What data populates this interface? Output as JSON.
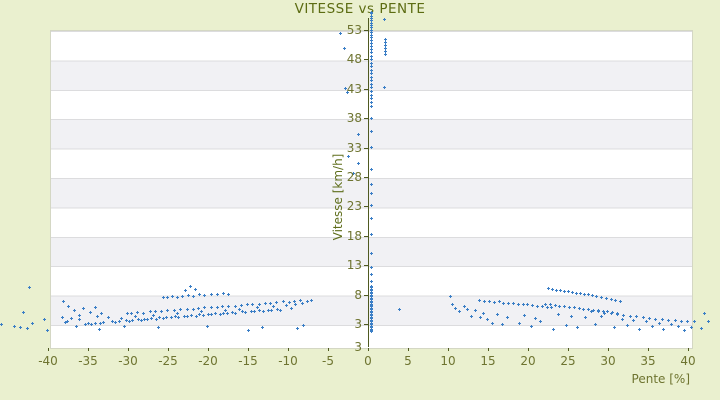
{
  "colors": {
    "background": "#eaf0cf",
    "marker": "#3a7ec6",
    "axis_line": "#4f5a21",
    "title_text": "#5c6c12",
    "tick_text": "#6e7430"
  },
  "chart_data": {
    "type": "scatter",
    "title": "VITESSE vs PENTE",
    "xlabel": "Pente [%]",
    "ylabel": "Vitesse [km/h]",
    "legend": "none",
    "grid": "horizontal-bands",
    "xlim": [
      -40,
      40.4
    ],
    "ylim": [
      -1,
      53
    ],
    "x_ticks": [
      -40,
      -35,
      -30,
      -25,
      -20,
      -15,
      -10,
      -5,
      0,
      5,
      10,
      15,
      20,
      25,
      30,
      35,
      40
    ],
    "y_ticks": [
      53,
      48,
      43,
      38,
      33,
      28,
      23,
      18,
      13,
      8,
      3
    ],
    "y_axis_end_label": "3",
    "points": [
      [
        -46.0,
        3.2
      ],
      [
        -44.4,
        2.9
      ],
      [
        -42.5,
        9.5
      ],
      [
        -43.3,
        5.2
      ],
      [
        -42.1,
        3.3
      ],
      [
        -43.6,
        2.7
      ],
      [
        -42.8,
        2.5
      ],
      [
        -40.6,
        4.0
      ],
      [
        -40.2,
        2.1
      ],
      [
        -38.2,
        7.0
      ],
      [
        -37.6,
        6.3
      ],
      [
        -36.9,
        5.6
      ],
      [
        -36.3,
        4.7
      ],
      [
        -37.2,
        4.2
      ],
      [
        -38.0,
        3.5
      ],
      [
        -35.8,
        5.9
      ],
      [
        -34.9,
        5.2
      ],
      [
        -34.2,
        6.0
      ],
      [
        -33.5,
        5.0
      ],
      [
        -36.6,
        2.9
      ],
      [
        -37.8,
        3.6
      ],
      [
        -38.4,
        4.3
      ],
      [
        -35.5,
        3.2
      ],
      [
        -35.1,
        3.3
      ],
      [
        -34.7,
        3.2
      ],
      [
        -34.3,
        3.4
      ],
      [
        -33.6,
        3.3
      ],
      [
        -33.2,
        3.5
      ],
      [
        -32.1,
        3.6
      ],
      [
        -31.7,
        3.5
      ],
      [
        -31.3,
        3.7
      ],
      [
        -30.4,
        3.8
      ],
      [
        -30.0,
        3.7
      ],
      [
        -29.6,
        3.9
      ],
      [
        -28.9,
        4.0
      ],
      [
        -28.5,
        3.9
      ],
      [
        -28.1,
        4.1
      ],
      [
        -27.7,
        4.0
      ],
      [
        -27.3,
        4.2
      ],
      [
        -26.6,
        4.1
      ],
      [
        -26.2,
        4.3
      ],
      [
        -25.8,
        4.2
      ],
      [
        -25.4,
        4.4
      ],
      [
        -24.7,
        4.3
      ],
      [
        -24.3,
        4.5
      ],
      [
        -23.9,
        4.4
      ],
      [
        -23.1,
        4.6
      ],
      [
        -22.7,
        4.5
      ],
      [
        -22.3,
        4.7
      ],
      [
        -21.6,
        4.6
      ],
      [
        -21.2,
        4.8
      ],
      [
        -20.8,
        4.7
      ],
      [
        -20.1,
        4.9
      ],
      [
        -19.7,
        4.8
      ],
      [
        -19.3,
        5.0
      ],
      [
        -18.6,
        4.9
      ],
      [
        -18.2,
        5.1
      ],
      [
        -17.8,
        5.0
      ],
      [
        -17.1,
        5.2
      ],
      [
        -16.7,
        5.1
      ],
      [
        -15.9,
        5.3
      ],
      [
        -15.5,
        5.2
      ],
      [
        -14.8,
        5.4
      ],
      [
        -14.4,
        5.3
      ],
      [
        -13.7,
        5.5
      ],
      [
        -13.3,
        5.4
      ],
      [
        -12.6,
        5.6
      ],
      [
        -12.2,
        5.5
      ],
      [
        -11.5,
        5.7
      ],
      [
        -11.1,
        5.6
      ],
      [
        -30.2,
        5.0
      ],
      [
        -29.8,
        5.1
      ],
      [
        -29.0,
        5.2
      ],
      [
        -28.2,
        5.1
      ],
      [
        -27.4,
        5.3
      ],
      [
        -26.8,
        5.4
      ],
      [
        -26.0,
        5.3
      ],
      [
        -25.2,
        5.5
      ],
      [
        -24.4,
        5.6
      ],
      [
        -23.6,
        5.7
      ],
      [
        -22.8,
        5.8
      ],
      [
        -22.0,
        5.7
      ],
      [
        -21.4,
        5.9
      ],
      [
        -20.6,
        6.0
      ],
      [
        -19.8,
        6.1
      ],
      [
        -19.0,
        6.0
      ],
      [
        -18.4,
        6.2
      ],
      [
        -17.6,
        6.3
      ],
      [
        -16.8,
        6.2
      ],
      [
        -16.0,
        6.4
      ],
      [
        -15.2,
        6.5
      ],
      [
        -14.6,
        6.6
      ],
      [
        -13.8,
        6.5
      ],
      [
        -13.0,
        6.7
      ],
      [
        -12.4,
        6.8
      ],
      [
        -11.6,
        6.9
      ],
      [
        -10.8,
        7.0
      ],
      [
        -10.0,
        6.9
      ],
      [
        -9.4,
        7.1
      ],
      [
        -8.6,
        7.2
      ],
      [
        -7.8,
        7.1
      ],
      [
        -7.2,
        7.3
      ],
      [
        -25.8,
        7.7
      ],
      [
        -25.2,
        7.8
      ],
      [
        -24.6,
        7.9
      ],
      [
        -24.0,
        7.8
      ],
      [
        -23.4,
        8.0
      ],
      [
        -22.6,
        8.1
      ],
      [
        -22.0,
        8.0
      ],
      [
        -21.2,
        8.2
      ],
      [
        -20.6,
        8.1
      ],
      [
        -19.8,
        8.3
      ],
      [
        -19.0,
        8.2
      ],
      [
        -18.2,
        8.4
      ],
      [
        -17.6,
        8.3
      ],
      [
        -22.4,
        9.6
      ],
      [
        -21.8,
        9.2
      ],
      [
        -23.0,
        9.0
      ],
      [
        -33.8,
        2.4
      ],
      [
        -30.6,
        2.9
      ],
      [
        -26.4,
        2.6
      ],
      [
        -20.2,
        2.8
      ],
      [
        -15.1,
        2.2
      ],
      [
        -13.4,
        2.6
      ],
      [
        -9.0,
        2.5
      ],
      [
        -8.2,
        3.0
      ],
      [
        -36.2,
        4.1
      ],
      [
        -34.0,
        4.6
      ],
      [
        -32.6,
        4.4
      ],
      [
        -31.0,
        4.2
      ],
      [
        -29.2,
        4.5
      ],
      [
        -27.0,
        4.7
      ],
      [
        -24.0,
        5.1
      ],
      [
        -21.0,
        5.3
      ],
      [
        -18.0,
        5.6
      ],
      [
        -16.2,
        5.8
      ],
      [
        -14.0,
        6.1
      ],
      [
        -12.0,
        6.2
      ],
      [
        -10.4,
        6.4
      ],
      [
        -9.8,
        5.9
      ],
      [
        -9.2,
        6.6
      ],
      [
        -8.4,
        6.8
      ],
      [
        0.3,
        1.9
      ],
      [
        0.3,
        2.15
      ],
      [
        0.3,
        2.4
      ],
      [
        0.3,
        2.65
      ],
      [
        0.3,
        2.9
      ],
      [
        0.3,
        3.15
      ],
      [
        0.3,
        3.4
      ],
      [
        0.3,
        3.65
      ],
      [
        0.3,
        3.9
      ],
      [
        0.3,
        4.15
      ],
      [
        0.3,
        4.4
      ],
      [
        0.3,
        4.65
      ],
      [
        0.3,
        4.9
      ],
      [
        0.3,
        5.15
      ],
      [
        0.3,
        5.4
      ],
      [
        0.3,
        5.65
      ],
      [
        0.3,
        5.9
      ],
      [
        0.3,
        6.15
      ],
      [
        0.3,
        6.4
      ],
      [
        0.3,
        6.65
      ],
      [
        0.3,
        6.9
      ],
      [
        0.3,
        7.15
      ],
      [
        0.3,
        7.4
      ],
      [
        0.3,
        7.65
      ],
      [
        0.3,
        7.9
      ],
      [
        0.3,
        8.15
      ],
      [
        0.3,
        8.4
      ],
      [
        0.3,
        8.65
      ],
      [
        0.3,
        8.9
      ],
      [
        0.3,
        9.15
      ],
      [
        0.3,
        9.4
      ],
      [
        0.3,
        9.65
      ],
      [
        0.2,
        10.4
      ],
      [
        0.3,
        11.7
      ],
      [
        0.2,
        12.9
      ],
      [
        0.3,
        15.2
      ],
      [
        0.2,
        18.4
      ],
      [
        0.3,
        21.2
      ],
      [
        0.2,
        23.4
      ],
      [
        0.3,
        25.5
      ],
      [
        0.2,
        27.0
      ],
      [
        0.3,
        29.5
      ],
      [
        -1.4,
        30.5
      ],
      [
        -2.0,
        28.8
      ],
      [
        -2.6,
        31.7
      ],
      [
        -1.4,
        35.5
      ],
      [
        0.2,
        33.2
      ],
      [
        0.3,
        36.0
      ],
      [
        0.2,
        38.2
      ],
      [
        0.3,
        40.3
      ],
      [
        0.2,
        41.0
      ],
      [
        0.3,
        41.6
      ],
      [
        0.2,
        42.2
      ],
      [
        0.3,
        42.8
      ],
      [
        0.2,
        43.4
      ],
      [
        0.3,
        44.0
      ],
      [
        0.2,
        44.6
      ],
      [
        0.3,
        45.2
      ],
      [
        0.2,
        45.8
      ],
      [
        0.3,
        46.4
      ],
      [
        0.2,
        47.0
      ],
      [
        0.3,
        47.6
      ],
      [
        0.2,
        48.2
      ],
      [
        0.3,
        48.8
      ],
      [
        0.2,
        49.4
      ],
      [
        0.3,
        50.0
      ],
      [
        0.2,
        50.5
      ],
      [
        0.3,
        51.0
      ],
      [
        0.2,
        51.5
      ],
      [
        0.3,
        52.0
      ],
      [
        0.2,
        52.4
      ],
      [
        0.3,
        52.8
      ],
      [
        0.2,
        53.2
      ],
      [
        0.3,
        53.6
      ],
      [
        0.2,
        54.0
      ],
      [
        0.3,
        54.4
      ],
      [
        0.2,
        54.8
      ],
      [
        0.3,
        55.2
      ],
      [
        0.2,
        55.6
      ],
      [
        0.3,
        56.0
      ],
      [
        0.2,
        56.3
      ],
      [
        -3.6,
        52.7
      ],
      [
        -3.1,
        50.1
      ],
      [
        -3.0,
        43.3
      ],
      [
        -2.8,
        42.6
      ],
      [
        1.9,
        55.0
      ],
      [
        2.0,
        51.6
      ],
      [
        2.0,
        51.1
      ],
      [
        2.0,
        50.6
      ],
      [
        2.0,
        50.1
      ],
      [
        2.0,
        49.6
      ],
      [
        2.0,
        49.1
      ],
      [
        1.9,
        43.5
      ],
      [
        3.8,
        5.7
      ],
      [
        10.1,
        7.9
      ],
      [
        10.4,
        6.6
      ],
      [
        10.8,
        5.9
      ],
      [
        11.2,
        5.3
      ],
      [
        11.9,
        6.2
      ],
      [
        12.3,
        5.7
      ],
      [
        12.8,
        4.6
      ],
      [
        13.3,
        5.5
      ],
      [
        13.9,
        4.3
      ],
      [
        14.3,
        5.0
      ],
      [
        14.8,
        4.1
      ],
      [
        13.8,
        7.2
      ],
      [
        14.4,
        7.1
      ],
      [
        15.0,
        7.0
      ],
      [
        15.6,
        6.9
      ],
      [
        16.2,
        7.0
      ],
      [
        16.8,
        6.8
      ],
      [
        17.4,
        6.7
      ],
      [
        18.0,
        6.8
      ],
      [
        18.6,
        6.6
      ],
      [
        19.2,
        6.5
      ],
      [
        19.8,
        6.6
      ],
      [
        20.4,
        6.4
      ],
      [
        21.0,
        6.3
      ],
      [
        21.6,
        6.2
      ],
      [
        22.2,
        6.1
      ],
      [
        22.8,
        6.0
      ],
      [
        22.4,
        9.3
      ],
      [
        22.9,
        9.1
      ],
      [
        23.4,
        9.0
      ],
      [
        23.9,
        8.9
      ],
      [
        24.4,
        8.8
      ],
      [
        24.9,
        8.7
      ],
      [
        25.4,
        8.6
      ],
      [
        25.9,
        8.5
      ],
      [
        26.4,
        8.4
      ],
      [
        26.9,
        8.3
      ],
      [
        27.4,
        8.2
      ],
      [
        27.9,
        8.1
      ],
      [
        28.4,
        8.0
      ],
      [
        29.0,
        7.8
      ],
      [
        29.6,
        7.6
      ],
      [
        30.2,
        7.4
      ],
      [
        30.8,
        7.2
      ],
      [
        31.4,
        7.0
      ],
      [
        22.0,
        6.6
      ],
      [
        22.6,
        6.5
      ],
      [
        23.2,
        6.4
      ],
      [
        23.8,
        6.3
      ],
      [
        24.4,
        6.2
      ],
      [
        25.0,
        6.1
      ],
      [
        25.6,
        6.0
      ],
      [
        26.2,
        5.9
      ],
      [
        26.8,
        5.8
      ],
      [
        27.4,
        5.7
      ],
      [
        28.0,
        5.6
      ],
      [
        28.6,
        5.5
      ],
      [
        29.2,
        5.4
      ],
      [
        29.8,
        5.3
      ],
      [
        30.4,
        5.2
      ],
      [
        31.0,
        5.1
      ],
      [
        27.8,
        5.4
      ],
      [
        28.6,
        5.3
      ],
      [
        29.4,
        5.1
      ],
      [
        30.2,
        5.0
      ],
      [
        31.0,
        4.9
      ],
      [
        31.8,
        4.7
      ],
      [
        32.6,
        4.6
      ],
      [
        33.4,
        4.5
      ],
      [
        34.2,
        4.4
      ],
      [
        35.0,
        4.2
      ],
      [
        35.8,
        4.1
      ],
      [
        36.6,
        4.0
      ],
      [
        37.4,
        3.9
      ],
      [
        38.2,
        3.8
      ],
      [
        39.0,
        3.7
      ],
      [
        39.8,
        3.6
      ],
      [
        40.6,
        3.6
      ],
      [
        15.4,
        3.4
      ],
      [
        16.6,
        3.1
      ],
      [
        18.8,
        3.3
      ],
      [
        20.2,
        2.9
      ],
      [
        21.4,
        3.6
      ],
      [
        23.0,
        2.4
      ],
      [
        24.6,
        3.0
      ],
      [
        26.0,
        2.7
      ],
      [
        28.2,
        3.2
      ],
      [
        30.6,
        2.6
      ],
      [
        32.2,
        3.0
      ],
      [
        33.8,
        2.4
      ],
      [
        35.4,
        2.9
      ],
      [
        36.8,
        2.3
      ],
      [
        38.6,
        2.8
      ],
      [
        39.4,
        2.2
      ],
      [
        40.2,
        2.7
      ],
      [
        16.0,
        4.9
      ],
      [
        17.2,
        4.4
      ],
      [
        19.4,
        4.7
      ],
      [
        20.8,
        4.2
      ],
      [
        23.6,
        4.8
      ],
      [
        25.2,
        4.5
      ],
      [
        27.0,
        4.3
      ],
      [
        29.0,
        4.6
      ],
      [
        31.6,
        4.0
      ],
      [
        33.0,
        3.8
      ],
      [
        34.6,
        3.6
      ],
      [
        36.2,
        3.4
      ],
      [
        37.8,
        3.2
      ],
      [
        41.9,
        5.0
      ],
      [
        42.4,
        3.7
      ],
      [
        41.5,
        2.5
      ]
    ]
  }
}
